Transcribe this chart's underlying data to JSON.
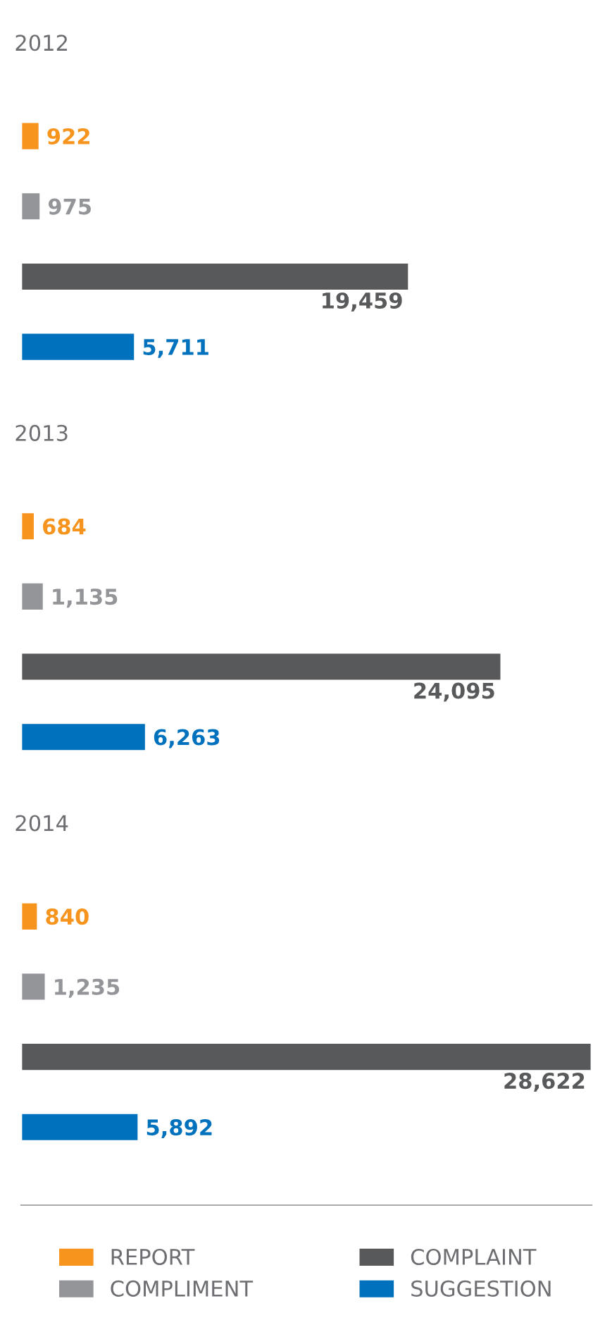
{
  "chart_data": {
    "type": "bar",
    "orientation": "horizontal",
    "categories": [
      "2012",
      "2013",
      "2014"
    ],
    "grid": false,
    "legend": "bottom",
    "series": [
      {
        "name": "REPORT",
        "color": "#f7941d",
        "values": [
          922,
          684,
          840
        ],
        "value_labels": [
          "922",
          "684",
          "840"
        ]
      },
      {
        "name": "COMPLIMENT",
        "color": "#939598",
        "values": [
          975,
          1135,
          1235
        ],
        "value_labels": [
          "975",
          "1,135",
          "1,235"
        ]
      },
      {
        "name": "COMPLAINT",
        "color": "#58595b",
        "values": [
          19459,
          24095,
          28622
        ],
        "value_labels": [
          "19,459",
          "24,095",
          "28,622"
        ]
      },
      {
        "name": "SUGGESTION",
        "color": "#0071bc",
        "values": [
          5711,
          6263,
          5892
        ],
        "value_labels": [
          "5,711",
          "6,263",
          "5,892"
        ]
      }
    ]
  }
}
